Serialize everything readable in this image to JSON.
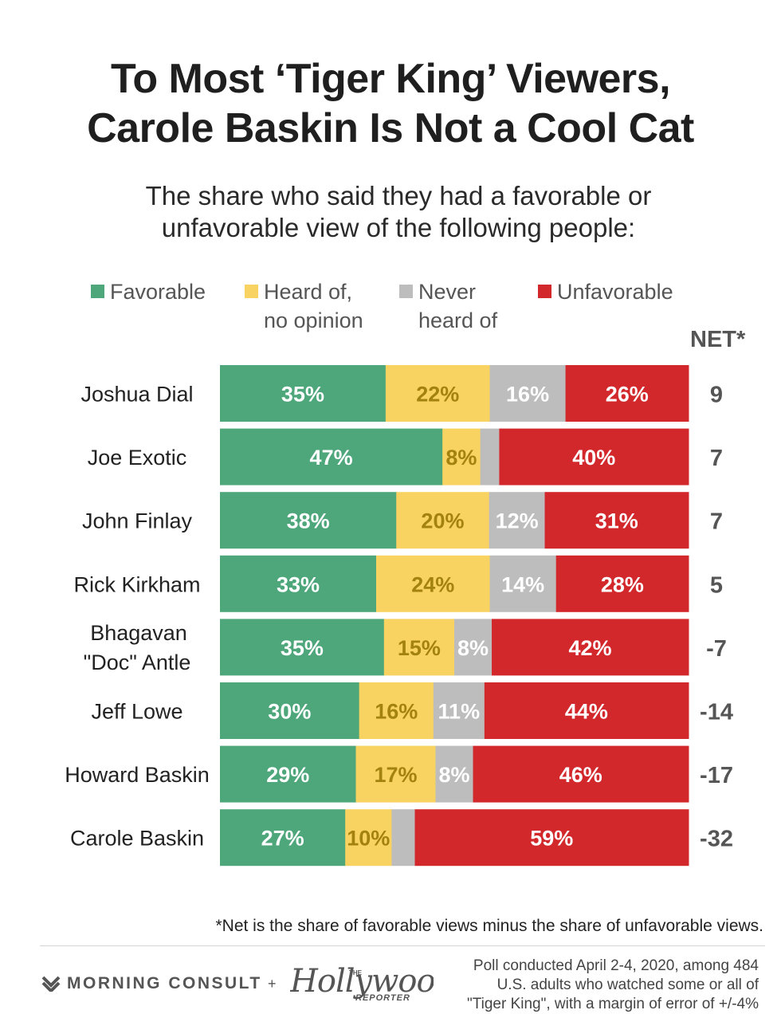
{
  "title_line1": "To Most ‘Tiger King’ Viewers,",
  "title_line2": "Carole Baskin Is Not a Cool Cat",
  "subtitle_line1": "The share who said they had a favorable or",
  "subtitle_line2": "unfavorable view of the following people:",
  "legend": [
    {
      "line1": "Favorable",
      "line2": "",
      "color": "#4ea67b"
    },
    {
      "line1": "Heard of,",
      "line2": "no opinion",
      "color": "#f9d361"
    },
    {
      "line1": "Never",
      "line2": "heard of",
      "color": "#bdbdbd"
    },
    {
      "line1": "Unfavorable",
      "line2": "",
      "color": "#d3282b"
    }
  ],
  "net_header": "NET*",
  "chart_data": {
    "type": "bar",
    "orientation": "horizontal-stacked-100",
    "categories": [
      "Joshua Dial",
      "Joe Exotic",
      "John Finlay",
      "Rick Kirkham",
      "Bhagavan \"Doc\" Antle",
      "Jeff Lowe",
      "Howard Baskin",
      "Carole Baskin"
    ],
    "series": [
      {
        "name": "Favorable",
        "color": "#4ea67b",
        "label_color": "#ffffff",
        "values": [
          35,
          47,
          38,
          33,
          35,
          30,
          29,
          27
        ]
      },
      {
        "name": "Heard of, no opinion",
        "color": "#f9d361",
        "label_color": "#a3820f",
        "values": [
          22,
          8,
          20,
          24,
          15,
          16,
          17,
          10
        ]
      },
      {
        "name": "Never heard of",
        "color": "#bdbdbd",
        "label_color": "#ffffff",
        "values": [
          16,
          4,
          12,
          14,
          8,
          11,
          8,
          5
        ]
      },
      {
        "name": "Unfavorable",
        "color": "#d3282b",
        "label_color": "#ffffff",
        "values": [
          26,
          40,
          31,
          28,
          42,
          44,
          46,
          59
        ]
      }
    ],
    "data_labels": [
      [
        "35%",
        "22%",
        "16%",
        "26%"
      ],
      [
        "47%",
        "8%",
        "",
        "40%"
      ],
      [
        "38%",
        "20%",
        "12%",
        "31%"
      ],
      [
        "33%",
        "24%",
        "14%",
        "28%"
      ],
      [
        "35%",
        "15%",
        "8%",
        "42%"
      ],
      [
        "30%",
        "16%",
        "11%",
        "44%"
      ],
      [
        "29%",
        "17%",
        "8%",
        "46%"
      ],
      [
        "27%",
        "10%",
        "",
        "59%"
      ]
    ],
    "net": [
      "9",
      "7",
      "7",
      "5",
      "-7",
      "-14",
      "-17",
      "-32"
    ],
    "xlim": [
      0,
      100
    ],
    "grid": false,
    "legend_position": "top"
  },
  "footnote": "*Net is the share of favorable views minus the share of unfavorable views.",
  "brand_left": "MORNING CONSULT",
  "brand_plus": "+",
  "brand_right_the": "THE",
  "brand_right": "Hollywood",
  "brand_right_reporter": "REPORTER",
  "poll_note_line1": "Poll conducted April 2-4, 2020, among 484",
  "poll_note_line2": "U.S. adults who watched some or all of",
  "poll_note_line3": "\"Tiger King\", with a margin of error of +/-4%"
}
